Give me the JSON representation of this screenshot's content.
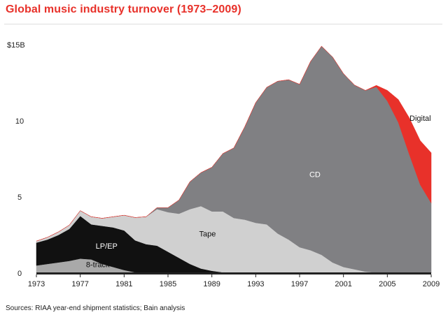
{
  "header": {
    "title": "Global music industry turnover (1973–2009)"
  },
  "footer": {
    "source": "Sources: RIAA year-end shipment statistics; Bain analysis"
  },
  "colors": {
    "title": "#e8312a",
    "digital": "#e8312a",
    "cd": "#808083",
    "tape": "#d0d0d0",
    "lp_ep": "#111111",
    "eight_track": "#a9a9a9",
    "axis": "#222222"
  },
  "chart_data": {
    "type": "area",
    "stacked": true,
    "title": "Global music industry turnover (1973–2009)",
    "x": [
      1973,
      1974,
      1975,
      1976,
      1977,
      1978,
      1979,
      1980,
      1981,
      1982,
      1983,
      1984,
      1985,
      1986,
      1987,
      1988,
      1989,
      1990,
      1991,
      1992,
      1993,
      1994,
      1995,
      1996,
      1997,
      1998,
      1999,
      2000,
      2001,
      2002,
      2003,
      2004,
      2005,
      2006,
      2007,
      2008,
      2009
    ],
    "xticks": [
      "1973",
      "1977",
      "1981",
      "1985",
      "1989",
      "1993",
      "1997",
      "2001",
      "2005",
      "2009"
    ],
    "yticks": [
      {
        "value": 0,
        "label": "0"
      },
      {
        "value": 5,
        "label": "5"
      },
      {
        "value": 10,
        "label": "10"
      },
      {
        "value": 15,
        "label": "$15B"
      }
    ],
    "ylim": [
      0,
      15
    ],
    "series": [
      {
        "name": "8-track",
        "color": "#a9a9a9",
        "values": [
          0.5,
          0.6,
          0.7,
          0.8,
          0.95,
          0.9,
          0.6,
          0.4,
          0.2,
          0.05,
          0,
          0,
          0,
          0,
          0,
          0,
          0,
          0,
          0,
          0,
          0,
          0,
          0,
          0,
          0,
          0,
          0,
          0,
          0,
          0,
          0,
          0,
          0,
          0,
          0,
          0,
          0
        ]
      },
      {
        "name": "LP/EP",
        "color": "#111111",
        "values": [
          1.5,
          1.6,
          1.8,
          2.1,
          2.8,
          2.3,
          2.5,
          2.6,
          2.6,
          2.1,
          1.9,
          1.8,
          1.4,
          1.0,
          0.6,
          0.3,
          0.15,
          0.05,
          0.02,
          0.01,
          0,
          0,
          0,
          0,
          0,
          0,
          0,
          0,
          0,
          0,
          0,
          0,
          0,
          0,
          0,
          0,
          0
        ]
      },
      {
        "name": "Tape",
        "color": "#d0d0d0",
        "values": [
          0.1,
          0.15,
          0.2,
          0.25,
          0.35,
          0.5,
          0.5,
          0.7,
          1.0,
          1.5,
          1.8,
          2.4,
          2.6,
          2.9,
          3.6,
          4.1,
          3.9,
          4.0,
          3.6,
          3.5,
          3.3,
          3.2,
          2.6,
          2.2,
          1.7,
          1.5,
          1.2,
          0.7,
          0.4,
          0.25,
          0.1,
          0.03,
          0,
          0,
          0,
          0,
          0
        ]
      },
      {
        "name": "CD",
        "color": "#808083",
        "values": [
          0,
          0,
          0,
          0,
          0,
          0,
          0,
          0,
          0,
          0,
          0,
          0.1,
          0.3,
          0.9,
          1.8,
          2.2,
          2.9,
          3.8,
          4.6,
          6.1,
          7.9,
          9.0,
          10.0,
          10.5,
          10.7,
          12.4,
          13.7,
          13.5,
          12.7,
          12.1,
          11.9,
          12.2,
          11.3,
          9.9,
          7.8,
          5.8,
          4.6
        ]
      },
      {
        "name": "Digital",
        "color": "#e8312a",
        "values": [
          0,
          0,
          0,
          0,
          0,
          0,
          0,
          0,
          0,
          0,
          0,
          0,
          0,
          0,
          0,
          0,
          0,
          0,
          0,
          0,
          0,
          0,
          0,
          0,
          0,
          0,
          0,
          0,
          0,
          0,
          0,
          0.1,
          0.7,
          1.5,
          2.4,
          2.9,
          3.3
        ]
      }
    ],
    "labels": [
      {
        "text": "LP/EP",
        "series": "LP/EP",
        "x": 1979.4,
        "y": 1.6,
        "color": "#ffffff"
      },
      {
        "text": "8-track",
        "series": "8-track",
        "x": 1978.6,
        "y": 0.38,
        "color": "#111111"
      },
      {
        "text": "Tape",
        "series": "Tape",
        "x": 1988.6,
        "y": 2.4,
        "color": "#111111"
      },
      {
        "text": "CD",
        "series": "CD",
        "x": 1998.4,
        "y": 6.3,
        "color": "#ffffff"
      },
      {
        "text": "Digital",
        "series": "Digital",
        "x": 2008.0,
        "y": 10.0,
        "color": "#111111"
      }
    ],
    "grid": false,
    "legend": "none (direct labels)"
  }
}
